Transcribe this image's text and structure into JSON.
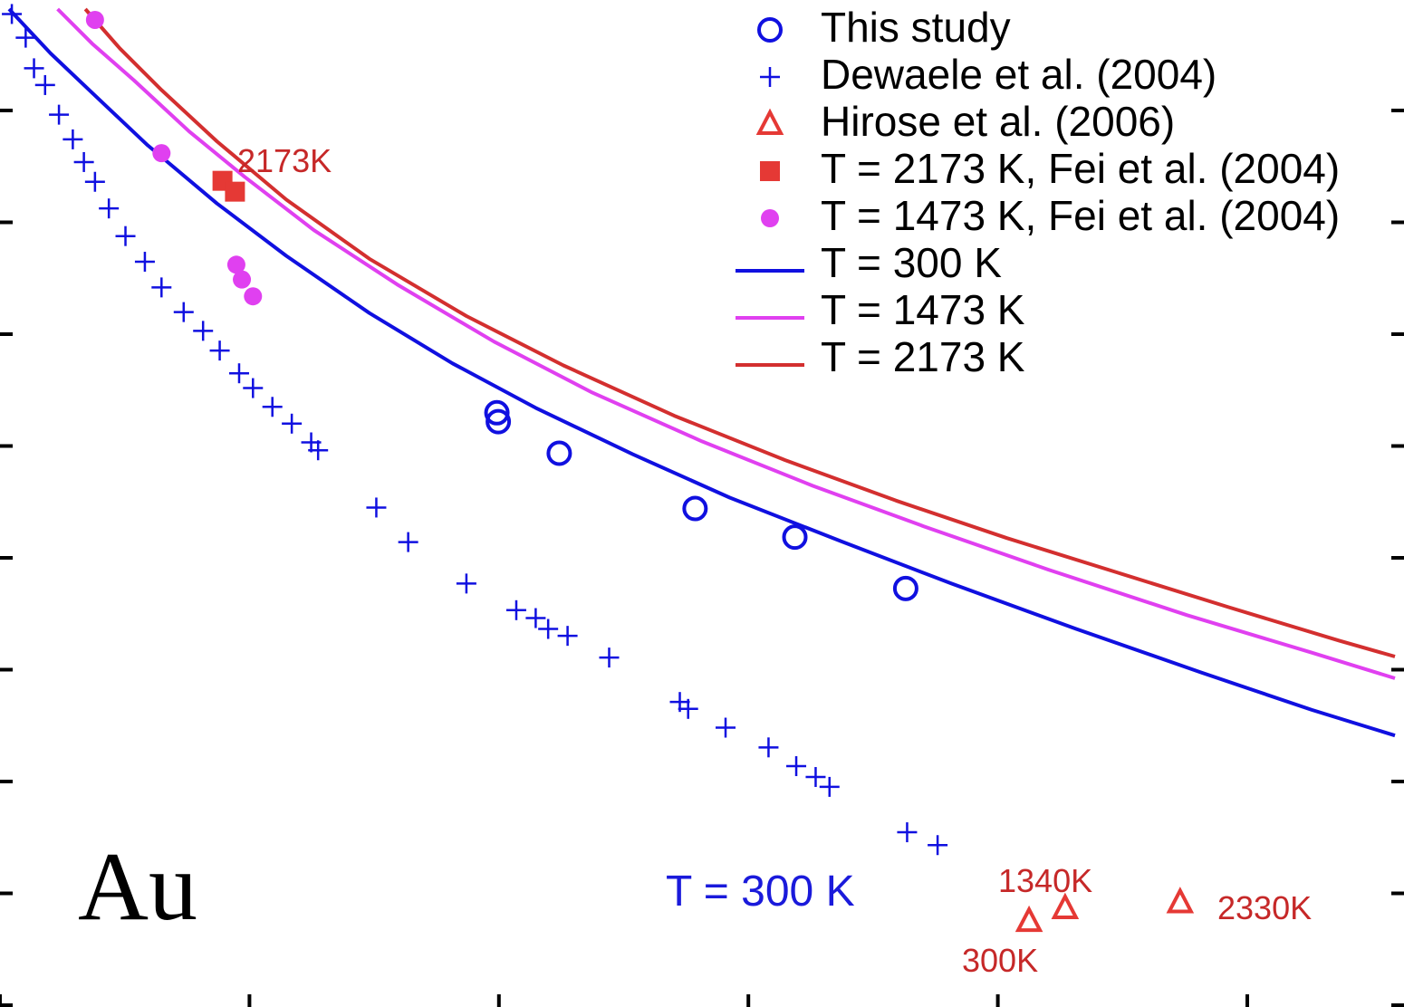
{
  "chart_data": {
    "type": "line",
    "title": "",
    "xlabel": "",
    "ylabel": "",
    "element_label": "Au",
    "grid": false,
    "legend_position": "top-right",
    "colors": {
      "t300": "#1010e0",
      "t1473": "#e040f0",
      "t2173": "#d32f2f",
      "hirose": "#e53935",
      "fei2173": "#e53935",
      "fei1473": "#e040f0"
    },
    "legend": [
      {
        "label": "This study",
        "marker": "open-circle",
        "color": "#1010e0"
      },
      {
        "label": "Dewaele et al. (2004)",
        "marker": "plus",
        "color": "#1010e0"
      },
      {
        "label": "Hirose et al. (2006)",
        "marker": "open-triangle",
        "color": "#e53935"
      },
      {
        "label": "T = 2173 K, Fei et al. (2004)",
        "marker": "filled-square",
        "color": "#e53935"
      },
      {
        "label": "T = 1473 K, Fei et al. (2004)",
        "marker": "filled-circle",
        "color": "#e040f0"
      },
      {
        "label": "T = 300 K",
        "marker": "line",
        "color": "#1010e0"
      },
      {
        "label": "T = 1473 K",
        "marker": "line",
        "color": "#e040f0"
      },
      {
        "label": "T = 2173 K",
        "marker": "line",
        "color": "#d32f2f"
      }
    ],
    "annotations": {
      "fei_2173_label": "2173K",
      "curve_300_label": "T = 300 K",
      "hirose_1340_label": "1340K",
      "hirose_300_label": "300K",
      "hirose_2330_label": "2330K"
    },
    "axes_note": "tick labels cropped out of view",
    "series": [
      {
        "name": "T = 300 K",
        "kind": "curve",
        "x": [
          0.0,
          0.03,
          0.06,
          0.1,
          0.15,
          0.2,
          0.26,
          0.32,
          0.38,
          0.45,
          0.52,
          0.6,
          0.68,
          0.77,
          0.86,
          0.94,
          1.0
        ],
        "y": [
          1.0,
          0.955,
          0.915,
          0.862,
          0.803,
          0.75,
          0.692,
          0.641,
          0.596,
          0.549,
          0.505,
          0.461,
          0.418,
          0.372,
          0.328,
          0.29,
          0.264
        ]
      },
      {
        "name": "T = 1473 K",
        "kind": "curve",
        "x": [
          0.035,
          0.06,
          0.09,
          0.13,
          0.17,
          0.22,
          0.28,
          0.35,
          0.42,
          0.5,
          0.58,
          0.66,
          0.75,
          0.85,
          0.94,
          1.0
        ],
        "y": [
          1.0,
          0.965,
          0.928,
          0.876,
          0.83,
          0.776,
          0.721,
          0.663,
          0.612,
          0.562,
          0.517,
          0.476,
          0.432,
          0.386,
          0.348,
          0.322
        ]
      },
      {
        "name": "T = 2173 K",
        "kind": "curve",
        "x": [
          0.055,
          0.08,
          0.11,
          0.15,
          0.2,
          0.26,
          0.33,
          0.4,
          0.48,
          0.56,
          0.64,
          0.72,
          0.8,
          0.88,
          0.96,
          1.0
        ],
        "y": [
          1.0,
          0.96,
          0.918,
          0.866,
          0.807,
          0.747,
          0.689,
          0.639,
          0.588,
          0.543,
          0.502,
          0.464,
          0.429,
          0.394,
          0.36,
          0.344
        ]
      },
      {
        "name": "This study",
        "kind": "points",
        "marker": "open-circle",
        "x": [
          0.352,
          0.353,
          0.397,
          0.495,
          0.567,
          0.647
        ],
        "y": [
          0.591,
          0.582,
          0.55,
          0.494,
          0.465,
          0.413
        ]
      },
      {
        "name": "Dewaele et al. (2004)",
        "kind": "points",
        "marker": "plus",
        "x": [
          0.002,
          0.012,
          0.018,
          0.026,
          0.036,
          0.046,
          0.054,
          0.062,
          0.072,
          0.084,
          0.098,
          0.11,
          0.126,
          0.14,
          0.152,
          0.166,
          0.176,
          0.19,
          0.204,
          0.218,
          0.223,
          0.265,
          0.288,
          0.33,
          0.366,
          0.38,
          0.389,
          0.403,
          0.433,
          0.484,
          0.49,
          0.517,
          0.548,
          0.568,
          0.582,
          0.592,
          0.648,
          0.67
        ],
        "y": [
          0.995,
          0.971,
          0.94,
          0.923,
          0.893,
          0.868,
          0.845,
          0.825,
          0.798,
          0.77,
          0.744,
          0.718,
          0.693,
          0.674,
          0.654,
          0.631,
          0.616,
          0.597,
          0.58,
          0.561,
          0.553,
          0.495,
          0.46,
          0.418,
          0.391,
          0.383,
          0.372,
          0.365,
          0.343,
          0.298,
          0.291,
          0.272,
          0.252,
          0.233,
          0.222,
          0.212,
          0.166,
          0.153
        ]
      },
      {
        "name": "T = 1473 K, Fei et al. (2004)",
        "kind": "points",
        "marker": "filled-circle",
        "x": [
          0.062,
          0.11,
          0.164,
          0.168,
          0.176
        ],
        "y": [
          0.989,
          0.854,
          0.741,
          0.726,
          0.709
        ]
      },
      {
        "name": "T = 2173 K, Fei et al. (2004)",
        "kind": "points",
        "marker": "filled-square",
        "x": [
          0.154,
          0.163
        ],
        "y": [
          0.826,
          0.815
        ]
      },
      {
        "name": "Hirose et al. (2006)",
        "kind": "points",
        "marker": "open-triangle",
        "x": [
          0.736,
          0.762,
          0.845
        ],
        "y": [
          0.076,
          0.089,
          0.095
        ]
      }
    ]
  }
}
